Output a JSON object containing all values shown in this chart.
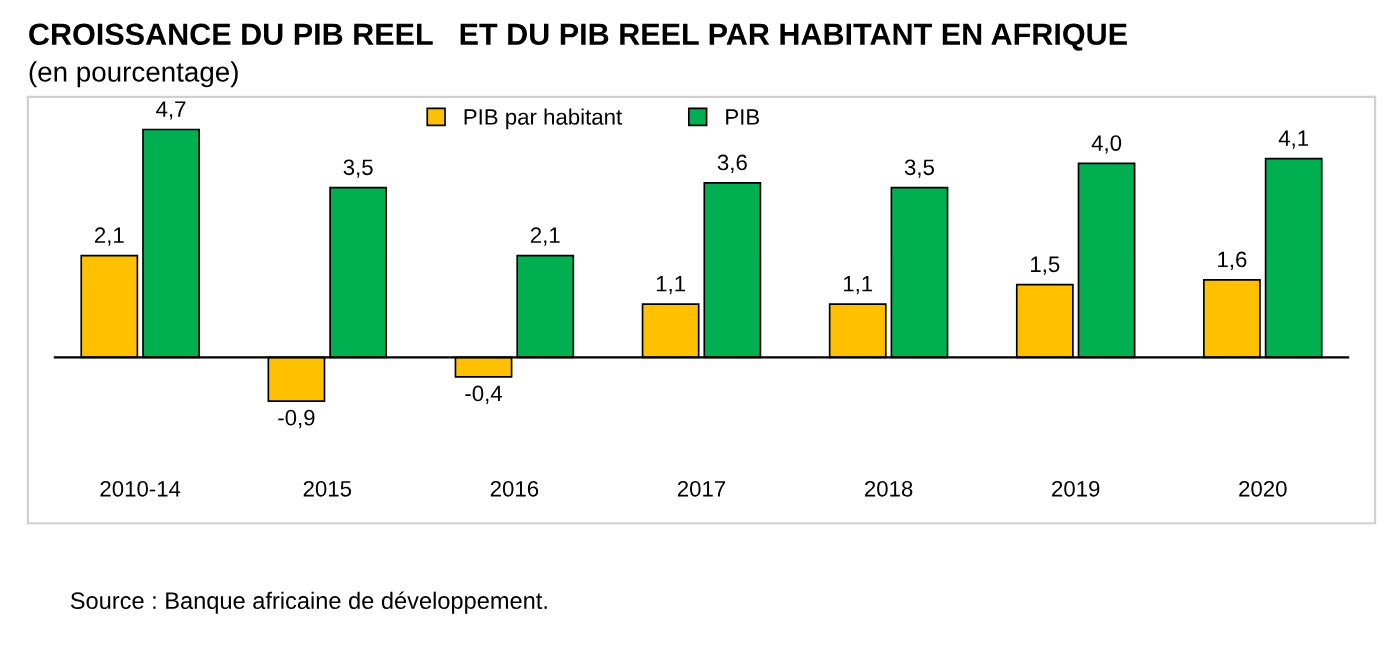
{
  "chart_data": {
    "type": "bar",
    "title": "CROISSANCE DU PIB REEL   ET DU PIB REEL PAR HABITANT EN AFRIQUE",
    "subtitle": "(en pourcentage)",
    "categories": [
      "2010-14",
      "2015",
      "2016",
      "2017",
      "2018",
      "2019",
      "2020"
    ],
    "series": [
      {
        "name": "PIB par habitant",
        "color": "#ffc000",
        "values": [
          2.1,
          -0.9,
          -0.4,
          1.1,
          1.1,
          1.5,
          1.6
        ],
        "value_labels": [
          "2,1",
          "-0,9",
          "-0,4",
          "1,1",
          "1,1",
          "1,5",
          "1,6"
        ]
      },
      {
        "name": "PIB",
        "color": "#00b050",
        "values": [
          4.7,
          3.5,
          2.1,
          3.6,
          3.5,
          4.0,
          4.1
        ],
        "value_labels": [
          "4,7",
          "3,5",
          "2,1",
          "3,6",
          "3,5",
          "4,0",
          "4,1"
        ]
      }
    ],
    "legend": "top",
    "annotations": [
      "Source : Banque africaine de développement."
    ]
  }
}
